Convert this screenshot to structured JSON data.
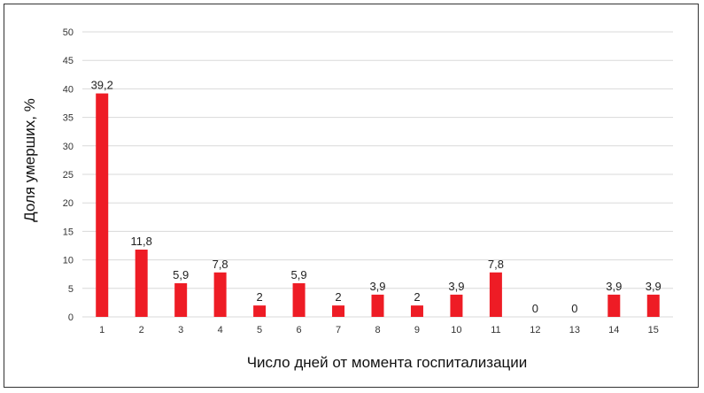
{
  "chart_data": {
    "type": "bar",
    "xlabel": "Число дней от момента госпитализации",
    "ylabel": "Доля умерших, %",
    "categories": [
      "1",
      "2",
      "3",
      "4",
      "5",
      "6",
      "7",
      "8",
      "9",
      "10",
      "11",
      "12",
      "13",
      "14",
      "15"
    ],
    "values": [
      39.2,
      11.8,
      5.9,
      7.8,
      2,
      5.9,
      2,
      3.9,
      2,
      3.9,
      7.8,
      0,
      0,
      3.9,
      3.9
    ],
    "value_labels": [
      "39,2",
      "11,8",
      "5,9",
      "7,8",
      "2",
      "5,9",
      "2",
      "3,9",
      "2",
      "3,9",
      "7,8",
      "0",
      "0",
      "3,9",
      "3,9"
    ],
    "yticks": [
      "0",
      "5",
      "10",
      "15",
      "20",
      "25",
      "30",
      "35",
      "40",
      "45",
      "50"
    ],
    "ylim": [
      0,
      50
    ],
    "grid": true,
    "legend": "none",
    "bar_color": "#ee1c25",
    "grid_color": "#d9d9d9"
  }
}
